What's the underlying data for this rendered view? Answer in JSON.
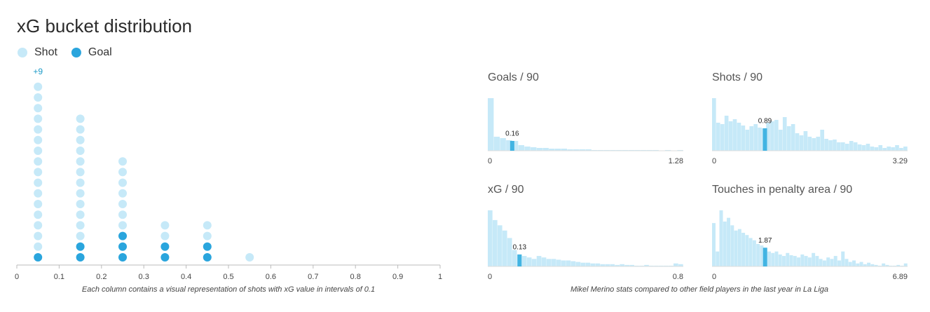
{
  "chart_data": [
    {
      "type": "dot",
      "title": "xG bucket distribution",
      "x": [
        0.05,
        0.15,
        0.25,
        0.35,
        0.45,
        0.55
      ],
      "series": [
        {
          "name": "Shot",
          "color": "#c6e9f8",
          "values": [
            16,
            12,
            7,
            2,
            2,
            1
          ]
        },
        {
          "name": "Goal",
          "color": "#2aa5dd",
          "values": [
            1,
            2,
            3,
            2,
            2,
            0
          ]
        }
      ],
      "annotations": [
        {
          "x": 0.05,
          "text": "+9"
        }
      ],
      "xlim": [
        0,
        1
      ],
      "xticks": [
        0,
        0.1,
        0.2,
        0.3,
        0.4,
        0.5,
        0.6,
        0.7,
        0.8,
        0.9,
        1
      ],
      "caption": "Each column contains a visual representation of shots with xG value in intervals of 0.1"
    },
    {
      "type": "histogram",
      "title": "Goals / 90",
      "color": "#c6e9f8",
      "marker_color": "#42b4e2",
      "bins": [
        0,
        0.04,
        0.08,
        0.12,
        0.16,
        0.2,
        0.24,
        0.28,
        0.32,
        0.36,
        0.4,
        0.44,
        0.48,
        0.52,
        0.56,
        0.6,
        0.64,
        0.68,
        0.72,
        0.76,
        0.8,
        0.84,
        0.88,
        0.92,
        0.96,
        1,
        1.04,
        1.08,
        1.12,
        1.16,
        1.2,
        1.24,
        1.28
      ],
      "values": [
        75,
        20,
        18,
        15,
        14,
        8,
        6,
        5,
        4,
        4,
        3,
        3,
        3,
        2,
        2,
        2,
        2,
        1,
        1,
        1,
        1,
        1,
        1,
        1,
        1,
        1,
        1,
        1,
        0,
        1,
        0,
        1
      ],
      "xlim": [
        0,
        1.28
      ],
      "xticks": [
        0,
        1.28
      ],
      "marker": 0.16
    },
    {
      "type": "histogram",
      "title": "Shots / 90",
      "color": "#c6e9f8",
      "marker_color": "#42b4e2",
      "bins": [
        0,
        0.07,
        0.14,
        0.21,
        0.28,
        0.35,
        0.42,
        0.49,
        0.56,
        0.63,
        0.7,
        0.77,
        0.84,
        0.91,
        0.98,
        1.05,
        1.12,
        1.19,
        1.26,
        1.33,
        1.4,
        1.47,
        1.54,
        1.61,
        1.68,
        1.75,
        1.82,
        1.89,
        1.96,
        2.03,
        2.1,
        2.17,
        2.24,
        2.31,
        2.38,
        2.45,
        2.52,
        2.59,
        2.66,
        2.73,
        2.8,
        2.87,
        2.94,
        3.01,
        3.08,
        3.15,
        3.22,
        3.29
      ],
      "values": [
        75,
        40,
        38,
        50,
        42,
        45,
        40,
        36,
        30,
        35,
        38,
        33,
        32,
        40,
        42,
        44,
        30,
        48,
        35,
        38,
        25,
        22,
        28,
        20,
        18,
        20,
        30,
        17,
        15,
        16,
        12,
        12,
        10,
        14,
        12,
        9,
        8,
        10,
        6,
        5,
        8,
        4,
        6,
        5,
        8,
        4,
        6
      ],
      "xlim": [
        0,
        3.29
      ],
      "xticks": [
        0,
        3.29
      ],
      "marker": 0.89
    },
    {
      "type": "histogram",
      "title": "xG / 90",
      "color": "#c6e9f8",
      "marker_color": "#42b4e2",
      "bins": [
        0,
        0.02,
        0.04,
        0.06,
        0.08,
        0.1,
        0.12,
        0.14,
        0.16,
        0.18,
        0.2,
        0.22,
        0.24,
        0.26,
        0.28,
        0.3,
        0.32,
        0.34,
        0.36,
        0.38,
        0.4,
        0.42,
        0.44,
        0.46,
        0.48,
        0.5,
        0.52,
        0.54,
        0.56,
        0.58,
        0.6,
        0.62,
        0.64,
        0.66,
        0.68,
        0.7,
        0.72,
        0.74,
        0.76,
        0.78,
        0.8
      ],
      "values": [
        75,
        62,
        55,
        48,
        38,
        22,
        16,
        14,
        12,
        10,
        14,
        12,
        10,
        10,
        9,
        8,
        8,
        7,
        6,
        5,
        5,
        4,
        4,
        3,
        3,
        3,
        2,
        3,
        2,
        2,
        1,
        1,
        2,
        1,
        1,
        1,
        1,
        1,
        4,
        3
      ],
      "xlim": [
        0,
        0.8
      ],
      "xticks": [
        0,
        0.8
      ],
      "marker": 0.13
    },
    {
      "type": "histogram",
      "title": "Touches in penalty area / 90",
      "color": "#c6e9f8",
      "marker_color": "#42b4e2",
      "bins": [
        0,
        0.13,
        0.26,
        0.39,
        0.52,
        0.65,
        0.78,
        0.91,
        1.04,
        1.17,
        1.3,
        1.43,
        1.56,
        1.69,
        1.82,
        1.95,
        2.08,
        2.21,
        2.34,
        2.47,
        2.6,
        2.73,
        2.86,
        2.99,
        3.12,
        3.25,
        3.38,
        3.51,
        3.64,
        3.77,
        3.9,
        4.03,
        4.16,
        4.29,
        4.42,
        4.55,
        4.68,
        4.81,
        4.94,
        5.07,
        5.2,
        5.33,
        5.46,
        5.59,
        5.72,
        5.85,
        5.98,
        6.11,
        6.24,
        6.37,
        6.5,
        6.63,
        6.76,
        6.89
      ],
      "values": [
        58,
        20,
        75,
        60,
        65,
        55,
        48,
        50,
        45,
        42,
        38,
        35,
        30,
        28,
        25,
        20,
        18,
        20,
        16,
        14,
        18,
        15,
        14,
        12,
        16,
        14,
        12,
        18,
        14,
        10,
        8,
        12,
        10,
        14,
        8,
        20,
        10,
        6,
        8,
        4,
        6,
        3,
        5,
        3,
        2,
        1,
        4,
        2,
        1,
        1,
        2,
        1,
        4
      ],
      "xlim": [
        0,
        6.89
      ],
      "xticks": [
        0,
        6.89
      ],
      "marker": 1.87
    }
  ],
  "comparison_caption": "Mikel Merino stats compared to other field players in the last year in La Liga"
}
